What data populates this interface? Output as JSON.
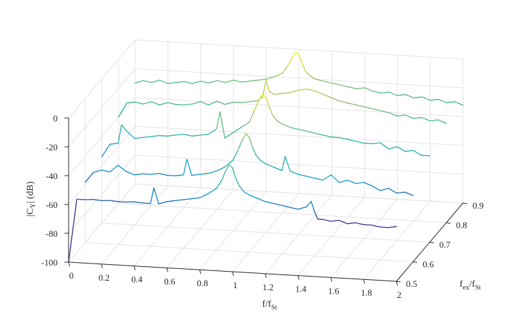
{
  "chart_data": {
    "type": "line",
    "subtype": "3d-waterfall",
    "colormap": "parula",
    "grid": true,
    "x_axis": {
      "label_main": "f/f",
      "label_sub": "St",
      "range": [
        0,
        2
      ],
      "ticks": [
        0,
        0.2,
        0.4,
        0.6,
        0.8,
        1,
        1.2,
        1.4,
        1.6,
        1.8,
        2
      ],
      "tick_labels": [
        "0",
        "0.2",
        "0.4",
        "0.6",
        "0.8",
        "1",
        "1.2",
        "1.4",
        "1.6",
        "1.8",
        "2"
      ]
    },
    "y_axis": {
      "label_main": "f",
      "label_sub1": "ex",
      "label_mid": "/f",
      "label_sub2": "St",
      "range": [
        0.5,
        0.9
      ],
      "ticks": [
        0.5,
        0.6,
        0.7,
        0.8,
        0.9
      ],
      "tick_labels": [
        "0.5",
        "0.6",
        "0.7",
        "0.8",
        "0.9"
      ]
    },
    "z_axis": {
      "label_main": "|C",
      "label_sub": "Y",
      "label_unit": "| (dB)",
      "range": [
        -100,
        0
      ],
      "ticks": [
        -100,
        -80,
        -60,
        -40,
        -20,
        0
      ],
      "tick_labels": [
        "-100",
        "-80",
        "-60",
        "-40",
        "-20",
        "0"
      ]
    },
    "series": [
      {
        "y": 0.5,
        "x": [
          0,
          0.05,
          0.1,
          0.15,
          0.2,
          0.25,
          0.3,
          0.35,
          0.4,
          0.45,
          0.5,
          0.52,
          0.55,
          0.6,
          0.65,
          0.7,
          0.75,
          0.8,
          0.85,
          0.9,
          0.93,
          0.96,
          0.98,
          1.0,
          1.02,
          1.04,
          1.07,
          1.1,
          1.15,
          1.2,
          1.25,
          1.3,
          1.35,
          1.4,
          1.45,
          1.48,
          1.5,
          1.52,
          1.55,
          1.6,
          1.65,
          1.7,
          1.75,
          1.8,
          1.85,
          1.9,
          1.95,
          2.0
        ],
        "z": [
          -100,
          -56,
          -56,
          -55.5,
          -56,
          -55.5,
          -56,
          -56,
          -55.5,
          -56,
          -56,
          -45,
          -56,
          -54,
          -53,
          -52,
          -51,
          -50,
          -47,
          -43,
          -38,
          -30,
          -26,
          -28,
          -35,
          -40,
          -44,
          -46,
          -48,
          -50,
          -51,
          -52,
          -53,
          -54,
          -52,
          -48,
          -55,
          -60,
          -60,
          -61,
          -60,
          -62,
          -61,
          -62,
          -62,
          -63,
          -63,
          -62
        ]
      },
      {
        "y": 0.6,
        "x": [
          0,
          0.05,
          0.1,
          0.15,
          0.2,
          0.25,
          0.3,
          0.35,
          0.4,
          0.45,
          0.5,
          0.55,
          0.6,
          0.62,
          0.65,
          0.7,
          0.75,
          0.8,
          0.85,
          0.9,
          0.93,
          0.96,
          0.98,
          1.0,
          1.02,
          1.04,
          1.07,
          1.1,
          1.15,
          1.2,
          1.22,
          1.25,
          1.3,
          1.35,
          1.4,
          1.45,
          1.5,
          1.55,
          1.6,
          1.65,
          1.7,
          1.75,
          1.8,
          1.85,
          1.9,
          1.95,
          2.0
        ],
        "z": [
          -58,
          -51,
          -49,
          -50,
          -45,
          -49,
          -51,
          -50,
          -50,
          -49,
          -50,
          -50,
          -49,
          -38,
          -49,
          -48,
          -47,
          -45,
          -42,
          -37,
          -30,
          -22,
          -18,
          -20,
          -27,
          -32,
          -36,
          -38,
          -40,
          -42,
          -32,
          -42,
          -44,
          -45,
          -46,
          -47,
          -43,
          -48,
          -46,
          -48,
          -47,
          -49,
          -52,
          -50,
          -53,
          -52,
          -54
        ]
      },
      {
        "y": 0.7,
        "x": [
          0,
          0.05,
          0.1,
          0.12,
          0.15,
          0.2,
          0.25,
          0.3,
          0.35,
          0.4,
          0.45,
          0.5,
          0.55,
          0.6,
          0.65,
          0.7,
          0.72,
          0.75,
          0.8,
          0.85,
          0.9,
          0.93,
          0.96,
          0.98,
          1.0,
          1.02,
          1.04,
          1.07,
          1.1,
          1.15,
          1.2,
          1.25,
          1.3,
          1.35,
          1.4,
          1.45,
          1.5,
          1.55,
          1.6,
          1.65,
          1.7,
          1.75,
          1.8,
          1.85,
          1.9,
          1.95,
          2.0
        ],
        "z": [
          -54,
          -45,
          -44,
          -31,
          -35,
          -40,
          -39,
          -38,
          -37,
          -37,
          -36,
          -35,
          -36,
          -35,
          -34,
          -30,
          -18,
          -36,
          -32,
          -28,
          -24,
          -16,
          -8,
          -4,
          -6,
          -12,
          -18,
          -22,
          -24,
          -26,
          -27,
          -28,
          -29,
          -30,
          -31,
          -31,
          -32,
          -33,
          -34,
          -34,
          -33,
          -37,
          -35,
          -38,
          -37,
          -40,
          -40
        ]
      },
      {
        "y": 0.8,
        "x": [
          0,
          0.05,
          0.1,
          0.15,
          0.2,
          0.25,
          0.3,
          0.35,
          0.4,
          0.45,
          0.5,
          0.55,
          0.6,
          0.65,
          0.7,
          0.75,
          0.8,
          0.85,
          0.88,
          0.9,
          0.92,
          0.95,
          1.0,
          1.05,
          1.1,
          1.15,
          1.2,
          1.25,
          1.3,
          1.35,
          1.4,
          1.45,
          1.5,
          1.55,
          1.6,
          1.65,
          1.7,
          1.75,
          1.8,
          1.85,
          1.9,
          1.95,
          2.0
        ],
        "z": [
          -40,
          -30,
          -29,
          -30,
          -28,
          -30,
          -28,
          -29,
          -29,
          -28,
          -26,
          -28,
          -25,
          -27,
          -25,
          -25,
          -24,
          -23,
          -20,
          -8,
          -16,
          -18,
          -17,
          -16,
          -14,
          -13,
          -14,
          -16,
          -18,
          -20,
          -21,
          -22,
          -23,
          -24,
          -25,
          -26,
          -28,
          -27,
          -29,
          -28,
          -30,
          -29,
          -31
        ]
      },
      {
        "y": 0.9,
        "x": [
          0,
          0.05,
          0.1,
          0.15,
          0.2,
          0.25,
          0.3,
          0.35,
          0.4,
          0.45,
          0.5,
          0.55,
          0.6,
          0.65,
          0.7,
          0.75,
          0.8,
          0.85,
          0.9,
          0.93,
          0.96,
          0.98,
          1.0,
          1.02,
          1.04,
          1.07,
          1.1,
          1.15,
          1.2,
          1.25,
          1.3,
          1.35,
          1.4,
          1.45,
          1.5,
          1.55,
          1.6,
          1.65,
          1.7,
          1.75,
          1.8,
          1.85,
          1.9,
          1.95,
          2.0
        ],
        "z": [
          -30,
          -28,
          -29,
          -27,
          -29,
          -28,
          -27,
          -28,
          -26,
          -27,
          -25,
          -26,
          -24,
          -25,
          -24,
          -23,
          -22,
          -20,
          -17,
          -12,
          -6,
          -2,
          -4,
          -10,
          -15,
          -18,
          -20,
          -21,
          -22,
          -23,
          -24,
          -25,
          -24,
          -26,
          -27,
          -26,
          -28,
          -27,
          -29,
          -28,
          -30,
          -29,
          -31,
          -30,
          -32
        ]
      }
    ]
  }
}
